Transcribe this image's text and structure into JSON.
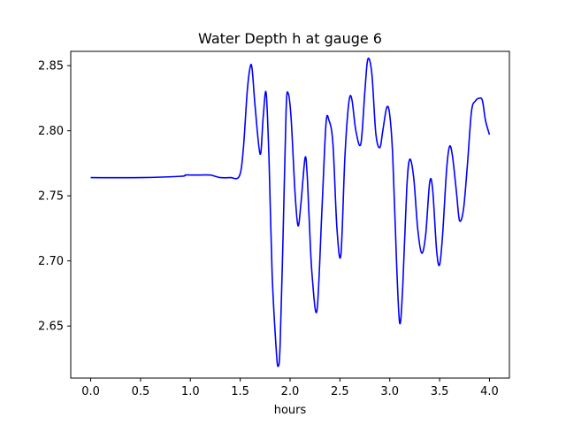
{
  "chart_data": {
    "type": "line",
    "title": "Water Depth h at gauge 6",
    "xlabel": "hours",
    "ylabel": "",
    "xlim": [
      -0.2,
      4.2
    ],
    "ylim": [
      2.61,
      2.861
    ],
    "xticks": [
      0.0,
      0.5,
      1.0,
      1.5,
      2.0,
      2.5,
      3.0,
      3.5,
      4.0
    ],
    "xtick_labels": [
      "0.0",
      "0.5",
      "1.0",
      "1.5",
      "2.0",
      "2.5",
      "3.0",
      "3.5",
      "4.0"
    ],
    "yticks": [
      2.65,
      2.7,
      2.75,
      2.8,
      2.85
    ],
    "ytick_labels": [
      "2.65",
      "2.70",
      "2.75",
      "2.80",
      "2.85"
    ],
    "grid": false,
    "series": [
      {
        "color": "#0000ff",
        "x": [
          0.0,
          0.5,
          0.9,
          0.95,
          1.0,
          1.1,
          1.2,
          1.25,
          1.3,
          1.4,
          1.49,
          1.53,
          1.57,
          1.6,
          1.62,
          1.65,
          1.7,
          1.73,
          1.76,
          1.79,
          1.82,
          1.86,
          1.88,
          1.9,
          1.93,
          1.96,
          1.98,
          2.01,
          2.05,
          2.08,
          2.11,
          2.15,
          2.17,
          2.19,
          2.22,
          2.27,
          2.32,
          2.36,
          2.39,
          2.43,
          2.47,
          2.51,
          2.55,
          2.59,
          2.62,
          2.66,
          2.71,
          2.75,
          2.78,
          2.82,
          2.86,
          2.9,
          2.93,
          2.97,
          3.0,
          3.03,
          3.07,
          3.1,
          3.13,
          3.17,
          3.2,
          3.24,
          3.28,
          3.32,
          3.36,
          3.4,
          3.43,
          3.47,
          3.5,
          3.53,
          3.57,
          3.6,
          3.63,
          3.67,
          3.7,
          3.74,
          3.78,
          3.82,
          3.86,
          3.9,
          3.93,
          3.96,
          4.0
        ],
        "y": [
          2.764,
          2.764,
          2.765,
          2.766,
          2.766,
          2.766,
          2.766,
          2.765,
          2.764,
          2.764,
          2.765,
          2.785,
          2.83,
          2.849,
          2.847,
          2.818,
          2.782,
          2.81,
          2.829,
          2.775,
          2.69,
          2.633,
          2.619,
          2.635,
          2.72,
          2.815,
          2.829,
          2.81,
          2.752,
          2.727,
          2.745,
          2.779,
          2.768,
          2.735,
          2.69,
          2.662,
          2.74,
          2.805,
          2.808,
          2.79,
          2.725,
          2.705,
          2.78,
          2.822,
          2.824,
          2.8,
          2.79,
          2.83,
          2.855,
          2.844,
          2.798,
          2.787,
          2.8,
          2.818,
          2.812,
          2.78,
          2.695,
          2.652,
          2.68,
          2.755,
          2.778,
          2.764,
          2.725,
          2.706,
          2.72,
          2.76,
          2.755,
          2.708,
          2.697,
          2.72,
          2.77,
          2.788,
          2.78,
          2.752,
          2.731,
          2.74,
          2.775,
          2.815,
          2.823,
          2.825,
          2.823,
          2.808,
          2.797
        ]
      }
    ]
  }
}
